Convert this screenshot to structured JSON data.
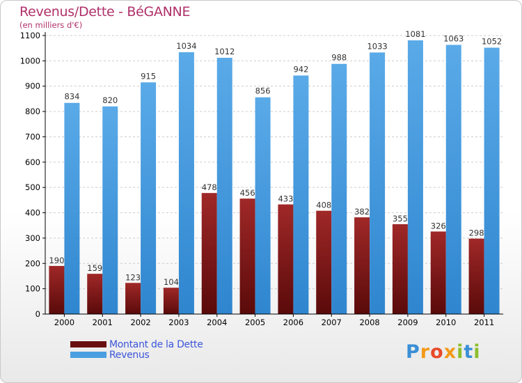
{
  "header": {
    "title": "Revenus/Dette - BéGANNE",
    "subtitle": "(en milliers d'€)"
  },
  "colors": {
    "debt": "#8b1a1a",
    "revenue": "#4a9fe0",
    "grid": "#cccccc",
    "axis": "#000000",
    "title": "#b0306a",
    "legend_text": "#3b55d9"
  },
  "legend": {
    "items": [
      {
        "label": "Montant de la Dette",
        "color": "#6a0f0f"
      },
      {
        "label": "Revenus",
        "color": "#4a9fe0"
      }
    ]
  },
  "brand": {
    "letters": [
      "P",
      "r",
      "o",
      "x",
      "i",
      "t",
      "i"
    ],
    "colors": [
      "#3a8fd6",
      "#f29a1a",
      "#e84a2a",
      "#f29a1a",
      "#8bbf2a",
      "#3a8fd6",
      "#8bbf2a"
    ]
  },
  "chart_data": {
    "type": "bar",
    "title": "Revenus/Dette - BéGANNE",
    "ylabel": "(en milliers d'€)",
    "categories": [
      "2000",
      "2001",
      "2002",
      "2003",
      "2004",
      "2005",
      "2006",
      "2007",
      "2008",
      "2009",
      "2010",
      "2011"
    ],
    "series": [
      {
        "name": "Montant de la Dette",
        "values": [
          190,
          159,
          123,
          104,
          478,
          456,
          433,
          408,
          382,
          355,
          326,
          298
        ]
      },
      {
        "name": "Revenus",
        "values": [
          834,
          820,
          915,
          1034,
          1012,
          856,
          942,
          988,
          1033,
          1081,
          1063,
          1052
        ]
      }
    ],
    "ylim": [
      0,
      1100
    ],
    "yticks": [
      0,
      100,
      200,
      300,
      400,
      500,
      600,
      700,
      800,
      900,
      1000,
      1100
    ],
    "grid": true,
    "legend_position": "bottom-left"
  }
}
